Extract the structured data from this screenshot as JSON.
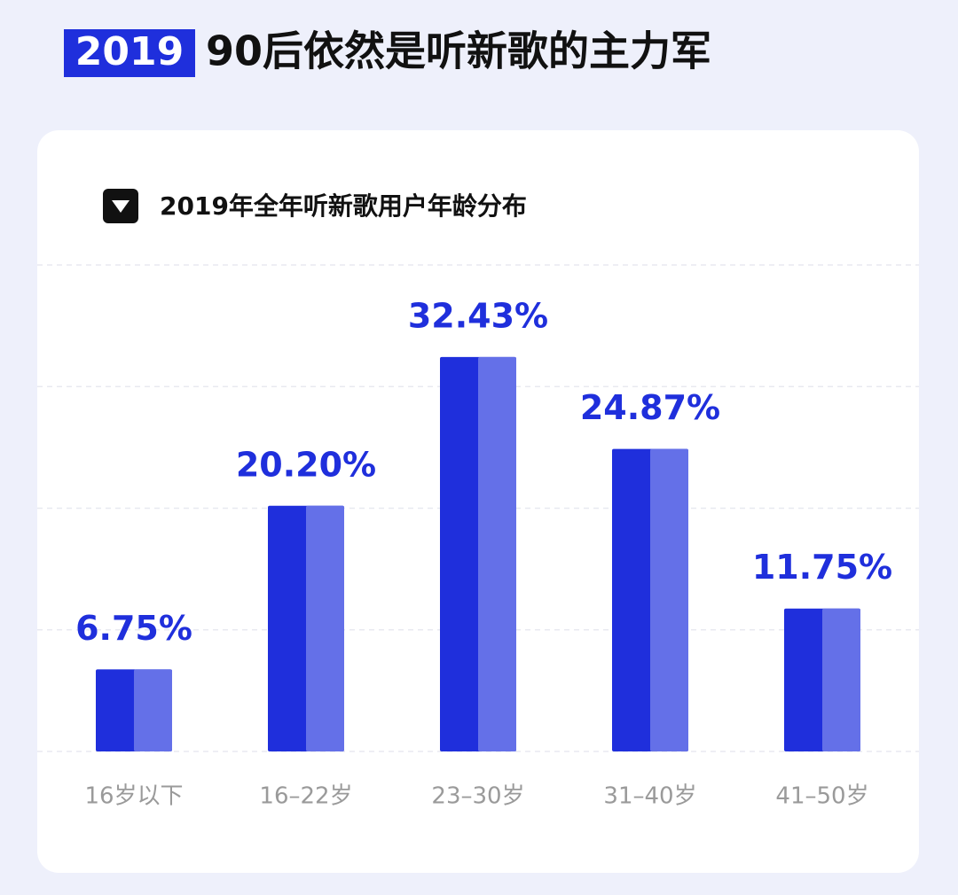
{
  "chart_data": {
    "type": "bar",
    "title_tag": "2019",
    "title": "90后依然是听新歌的主力军",
    "subtitle": "2019年全年听新歌用户年龄分布",
    "categories": [
      "16岁以下",
      "16–22岁",
      "23–30岁",
      "31–40岁",
      "41–50岁"
    ],
    "values": [
      6.75,
      20.2,
      32.43,
      24.87,
      11.75
    ],
    "value_labels": [
      "6.75%",
      "20.20%",
      "32.43%",
      "24.87%",
      "11.75%"
    ],
    "colors": [
      "#1f2fdc",
      "#6470e8"
    ],
    "ylim": [
      0,
      40
    ],
    "yticks": [
      0,
      10,
      20,
      30,
      40
    ],
    "grid": true
  }
}
